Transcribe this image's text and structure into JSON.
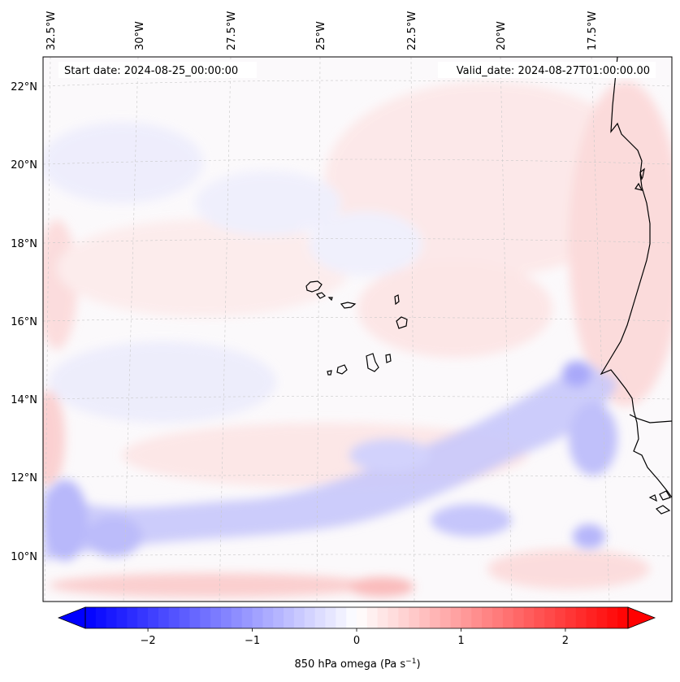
{
  "map": {
    "start_date_label": "Start date: 2024-08-25_00:00:00",
    "valid_date_label": "Valid_date: 2024-08-27T01:00:00.00",
    "lon_labels": [
      "32.5°W",
      "30°W",
      "27.5°W",
      "25°W",
      "22.5°W",
      "20°W",
      "17.5°W"
    ],
    "lat_labels": [
      "22°N",
      "20°N",
      "18°N",
      "16°N",
      "14°N",
      "12°N",
      "10°N"
    ],
    "gridlines": true
  },
  "colorbar": {
    "label_main": "850 hPa omega (Pa s",
    "label_sup": "−1",
    "label_close": ")",
    "ticks": [
      "−2",
      "−1",
      "0",
      "1",
      "2"
    ],
    "tick_values": [
      -2,
      -1,
      0,
      1,
      2
    ],
    "range": [
      -2.6,
      2.6
    ],
    "colormap": "bwr",
    "color_min": "#0000ff",
    "color_mid": "#ffffff",
    "color_max": "#ff0000",
    "extend": "both"
  }
}
